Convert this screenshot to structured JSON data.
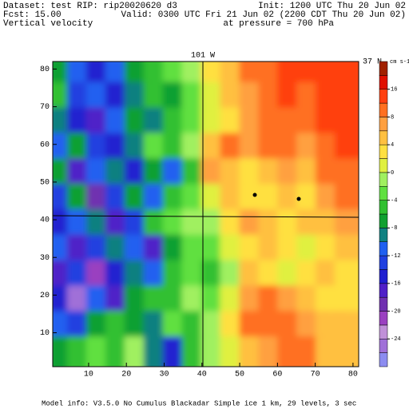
{
  "chart_data": {
    "type": "contour",
    "header_left": [
      "Dataset: test  RIP: rip20020620 d3",
      "Fcst:    15.00",
      "Vertical velocity"
    ],
    "header_right": [
      "Init: 1200 UTC Thu 20 Jun 02",
      "Valid: 0300 UTC Fri 21 Jun 02 (2200 CDT Thu 20 Jun 02)",
      "at pressure =  700 hPa"
    ],
    "top_label": "101 W",
    "right_label": "37 N",
    "footer": "Model info: V3.5.0 No Cumulus Blackadar  Simple ice    1 km,  29 levels,    3 sec",
    "xlim": [
      0.5,
      81.5
    ],
    "xticks": [
      10,
      20,
      30,
      40,
      50,
      60,
      70,
      80
    ],
    "ylim": [
      1,
      82
    ],
    "yticks": [
      10,
      20,
      30,
      40,
      50,
      60,
      70,
      80
    ],
    "colorbar": {
      "units": "cm s-1",
      "levels": [
        -28,
        -26,
        -24,
        -22,
        -20,
        -18,
        -16,
        -14,
        -12,
        -10,
        -8,
        -6,
        -4,
        -2,
        0,
        2,
        4,
        6,
        8,
        12,
        16,
        20,
        24
      ],
      "colors": [
        "#8c8cf0",
        "#a070d8",
        "#c090d8",
        "#9a40c0",
        "#7030b0",
        "#5020c8",
        "#2020d0",
        "#2040e0",
        "#2060f0",
        "#108080",
        "#10a030",
        "#30c030",
        "#60e040",
        "#a0f060",
        "#e0f040",
        "#ffe040",
        "#ffc040",
        "#ffa040",
        "#ff7020",
        "#ff4010",
        "#e01000",
        "#a02000"
      ],
      "ticks": [
        16,
        8,
        4,
        0,
        -4,
        -8,
        -12,
        -16,
        -20,
        -24
      ]
    },
    "field": [
      [
        -8,
        -12,
        -16,
        -12,
        -8,
        -6,
        -4,
        -2,
        2,
        4,
        8,
        10,
        12,
        12,
        12,
        12
      ],
      [
        -6,
        -14,
        -12,
        -16,
        -10,
        -6,
        -8,
        -4,
        0,
        4,
        6,
        10,
        12,
        10,
        12,
        12
      ],
      [
        -10,
        -16,
        -18,
        -12,
        -8,
        -10,
        -6,
        -4,
        0,
        2,
        6,
        8,
        10,
        10,
        12,
        12
      ],
      [
        -12,
        -8,
        -14,
        -16,
        -10,
        -4,
        -6,
        -2,
        4,
        8,
        6,
        8,
        8,
        6,
        10,
        12
      ],
      [
        -8,
        -18,
        -12,
        -10,
        -16,
        -8,
        -12,
        -6,
        6,
        4,
        2,
        4,
        6,
        4,
        8,
        10
      ],
      [
        -14,
        -8,
        -20,
        -14,
        -8,
        -12,
        -6,
        -4,
        0,
        4,
        2,
        2,
        4,
        2,
        6,
        8
      ],
      [
        -16,
        -12,
        -10,
        -18,
        -14,
        -6,
        -4,
        -2,
        -2,
        2,
        6,
        4,
        2,
        4,
        4,
        6
      ],
      [
        -12,
        -18,
        -14,
        -10,
        -12,
        -18,
        -8,
        -4,
        -4,
        0,
        2,
        4,
        2,
        0,
        2,
        4
      ],
      [
        -18,
        -14,
        -22,
        -16,
        -10,
        -12,
        -6,
        -4,
        -6,
        -2,
        4,
        2,
        0,
        2,
        4,
        2
      ],
      [
        -16,
        -26,
        -12,
        -18,
        -8,
        -6,
        -6,
        -2,
        -4,
        0,
        6,
        10,
        6,
        4,
        2,
        2
      ],
      [
        -12,
        -14,
        -8,
        -6,
        -8,
        -10,
        -4,
        -6,
        -2,
        2,
        8,
        10,
        10,
        6,
        4,
        4
      ],
      [
        -8,
        -6,
        -4,
        -6,
        -2,
        -10,
        -16,
        -6,
        -2,
        0,
        4,
        6,
        8,
        8,
        4,
        4
      ]
    ]
  }
}
